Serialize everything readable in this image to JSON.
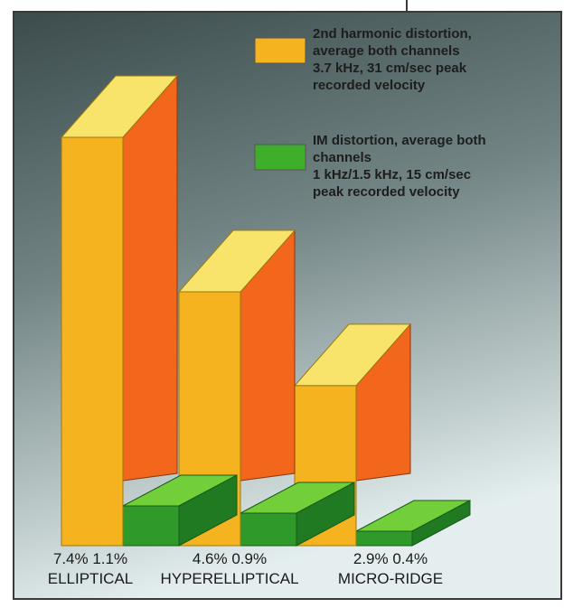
{
  "chart_data": {
    "type": "bar",
    "categories": [
      "ELLIPTICAL",
      "HYPERELLIPTICAL",
      "MICRO-RIDGE"
    ],
    "series": [
      {
        "name": "2nd harmonic distortion, average both channels 3.7 kHz, 31 cm/sec peak recorded velocity",
        "values": [
          7.4,
          4.6,
          2.9
        ],
        "labels": [
          "7.4%",
          "4.6%",
          "2.9%"
        ]
      },
      {
        "name": "IM distortion, average both channels 1 kHz/1.5 kHz, 15 cm/sec peak recorded velocity",
        "values": [
          1.1,
          0.9,
          0.4
        ],
        "labels": [
          "1.1%",
          "0.9%",
          "0.4%"
        ]
      }
    ],
    "value_labels": [
      "7.4% 1.1%",
      "4.6% 0.9%",
      "2.9% 0.4%"
    ],
    "legend": [
      {
        "lines": [
          "2nd harmonic distortion,",
          "average both channels",
          "3.7 kHz, 31 cm/sec peak",
          "recorded velocity"
        ],
        "color": "#f4b31f"
      },
      {
        "lines": [
          "IM distortion, average both",
          "channels",
          "1 kHz/1.5 kHz, 15 cm/sec",
          "peak recorded velocity"
        ],
        "color": "#3fae2a"
      }
    ],
    "legend_position": "top-right",
    "ylim": [
      0,
      7.4
    ],
    "grid": false,
    "style": "3d",
    "colors": {
      "yellow_front": "#f4b31f",
      "yellow_top": "#f8e46a",
      "orange_side": "#f2671c",
      "green_front": "#2f9a2a",
      "green_top": "#72cf3a",
      "green_side": "#1f7a22",
      "background_top": "#3c4c4c",
      "background_bottom": "#e4eeee"
    }
  }
}
